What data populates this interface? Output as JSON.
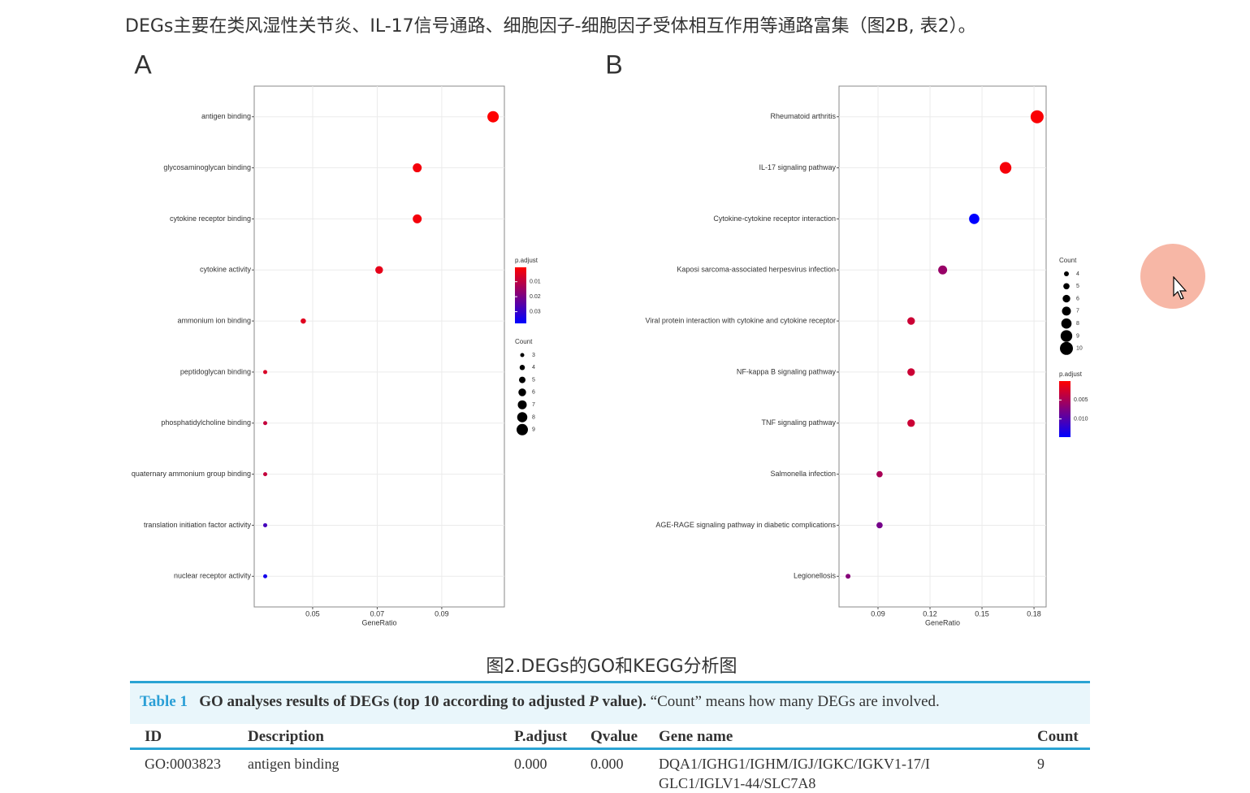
{
  "text": "DEGs主要在类风湿性关节炎、IL-17信号通路、细胞因子-细胞因子受体相互作用等通路富集（图2B, 表2）。",
  "chart_data": [
    {
      "type": "dot",
      "panel_label": "A",
      "categories": [
        "antigen binding",
        "glycosaminoglycan binding",
        "cytokine receptor binding",
        "cytokine activity",
        "ammonium ion binding",
        "peptidoglycan binding",
        "phosphatidylcholine binding",
        "quaternary ammonium group binding",
        "translation initiation factor activity",
        "nuclear receptor activity"
      ],
      "values": [
        0.1059,
        0.0824,
        0.0824,
        0.0706,
        0.0471,
        0.0353,
        0.0353,
        0.0353,
        0.0353,
        0.0353
      ],
      "count": [
        9,
        7,
        7,
        6,
        4,
        3,
        3,
        3,
        3,
        3
      ],
      "p_adjust": [
        0.0005,
        0.002,
        0.002,
        0.004,
        0.005,
        0.006,
        0.009,
        0.009,
        0.028,
        0.035
      ],
      "xlim": [
        0.0319,
        0.1094
      ],
      "xticks": [
        0.05,
        0.07,
        0.09
      ],
      "xlabel": "GeneRatio",
      "grid": true,
      "color_legend_title": "p.adjust",
      "colorlim": [
        0.0004,
        0.0378
      ],
      "colorbar_ticks": [
        0.01,
        0.02,
        0.03
      ],
      "colors": [
        "#ff0000",
        "#0000ff"
      ],
      "size_legend_title": "Count",
      "size_legend": [
        3,
        4,
        5,
        6,
        7,
        8,
        9
      ]
    },
    {
      "type": "dot",
      "panel_label": "B",
      "categories": [
        "Rheumatoid arthritis",
        "IL-17 signaling pathway",
        "Cytokine-cytokine receptor interaction",
        "Kaposi sarcoma-associated herpesvirus infection",
        "Viral protein interaction with cytokine and cytokine receptor",
        "NF-kappa B signaling pathway",
        "TNF signaling pathway",
        "Salmonella infection",
        "AGE-RAGE signaling pathway in diabetic complications",
        "Legionellosis"
      ],
      "values": [
        0.1818,
        0.1636,
        0.1455,
        0.1273,
        0.1091,
        0.1091,
        0.1091,
        0.0909,
        0.0909,
        0.0727
      ],
      "count": [
        10,
        9,
        8,
        7,
        6,
        6,
        6,
        5,
        5,
        4
      ],
      "p_adjust": [
        0.0003,
        0.0005,
        0.0148,
        0.006,
        0.003,
        0.003,
        0.003,
        0.005,
        0.008,
        0.007
      ],
      "xlim": [
        0.0675,
        0.187
      ],
      "xticks": [
        0.09,
        0.12,
        0.15,
        0.18
      ],
      "xlabel": "GeneRatio",
      "grid": true,
      "color_legend_title": "p.adjust",
      "colorlim": [
        0.0,
        0.0148
      ],
      "colorbar_ticks": [
        0.005,
        {
          "value": 0.01,
          "label": "0.010"
        }
      ],
      "colors": [
        "#ff0000",
        "#0000ff"
      ],
      "size_legend_title": "Count",
      "size_legend": [
        4,
        5,
        6,
        7,
        8,
        9,
        10
      ]
    }
  ],
  "caption": "图2.DEGs的GO和KEGG分析图",
  "table": {
    "label": "Table 1",
    "title_before": "GO analyses results of DEGs (top 10 according to adjusted ",
    "title_italic": "P",
    "title_after": " value).",
    "note": "“Count” means how many DEGs are involved.",
    "columns": [
      "ID",
      "Description",
      "P.adjust",
      "Qvalue",
      "Gene name",
      "Count"
    ],
    "rows": [
      [
        "GO:0003823",
        "antigen binding",
        "0.000",
        "0.000",
        "DQA1/IGHG1/IGHM/IGJ/IGKC/IGKV1-17/IGLC1/IGLV1-44/SLC7A8",
        "9"
      ]
    ]
  }
}
